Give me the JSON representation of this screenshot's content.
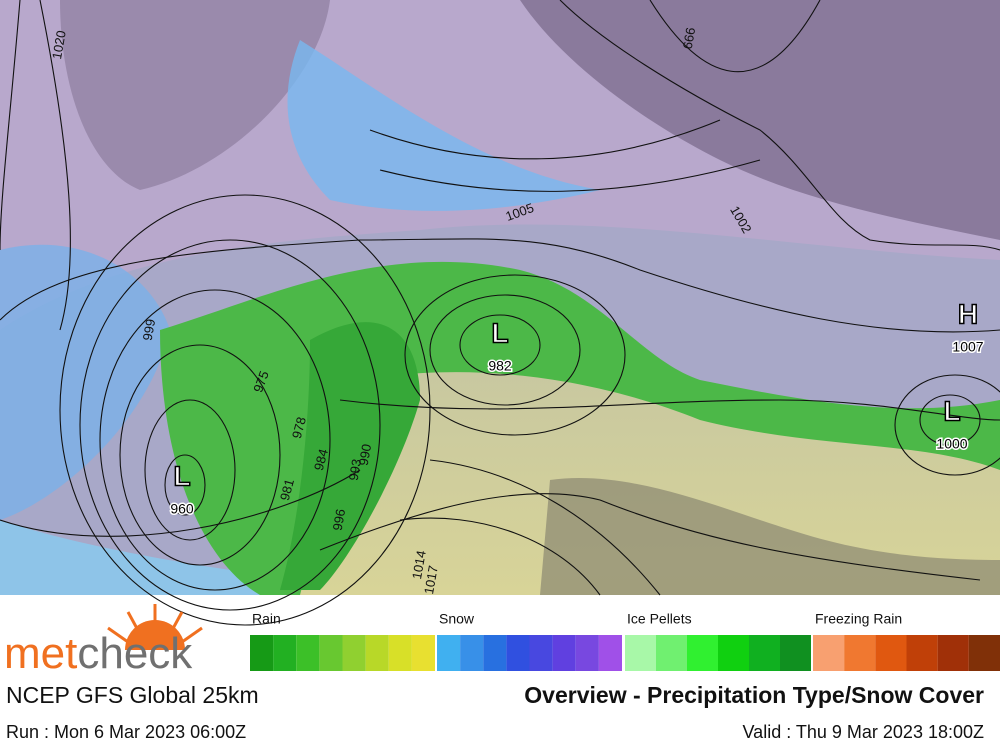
{
  "map": {
    "systems": [
      {
        "symbol": "L",
        "pressure": "982"
      },
      {
        "symbol": "L",
        "pressure": "960"
      },
      {
        "symbol": "H",
        "pressure": "1007"
      },
      {
        "symbol": "L",
        "pressure": "1000"
      }
    ],
    "isobar_labels": [
      "1020",
      "999",
      "1005",
      "1002",
      "999",
      "975",
      "978",
      "981",
      "984",
      "1014",
      "1017",
      "993",
      "990",
      "996"
    ]
  },
  "legend": [
    {
      "label": "Rain",
      "colors": [
        "#169a16",
        "#22b022",
        "#3cc028",
        "#68c830",
        "#90d030",
        "#b8d828",
        "#d8e028",
        "#e8e030"
      ]
    },
    {
      "label": "Snow",
      "colors": [
        "#40b0f0",
        "#3890e8",
        "#2870e0",
        "#3050e0",
        "#4848e0",
        "#6040e0",
        "#7848e0",
        "#a050e8"
      ]
    },
    {
      "label": "Ice Pellets",
      "colors": [
        "#a8f8a8",
        "#70f070",
        "#30f030",
        "#10d010",
        "#10b020",
        "#109020"
      ]
    },
    {
      "label": "Freezing Rain",
      "colors": [
        "#f8a070",
        "#f07830",
        "#e05810",
        "#c04008",
        "#a03008",
        "#803008"
      ]
    }
  ],
  "logo": {
    "first": "met",
    "second": "check"
  },
  "model": "NCEP GFS Global 25km",
  "title": "Overview - Precipitation Type/Snow Cover",
  "run": "Run : Mon 6 Mar 2023 06:00Z",
  "valid": "Valid : Thu 9 Mar 2023 18:00Z"
}
